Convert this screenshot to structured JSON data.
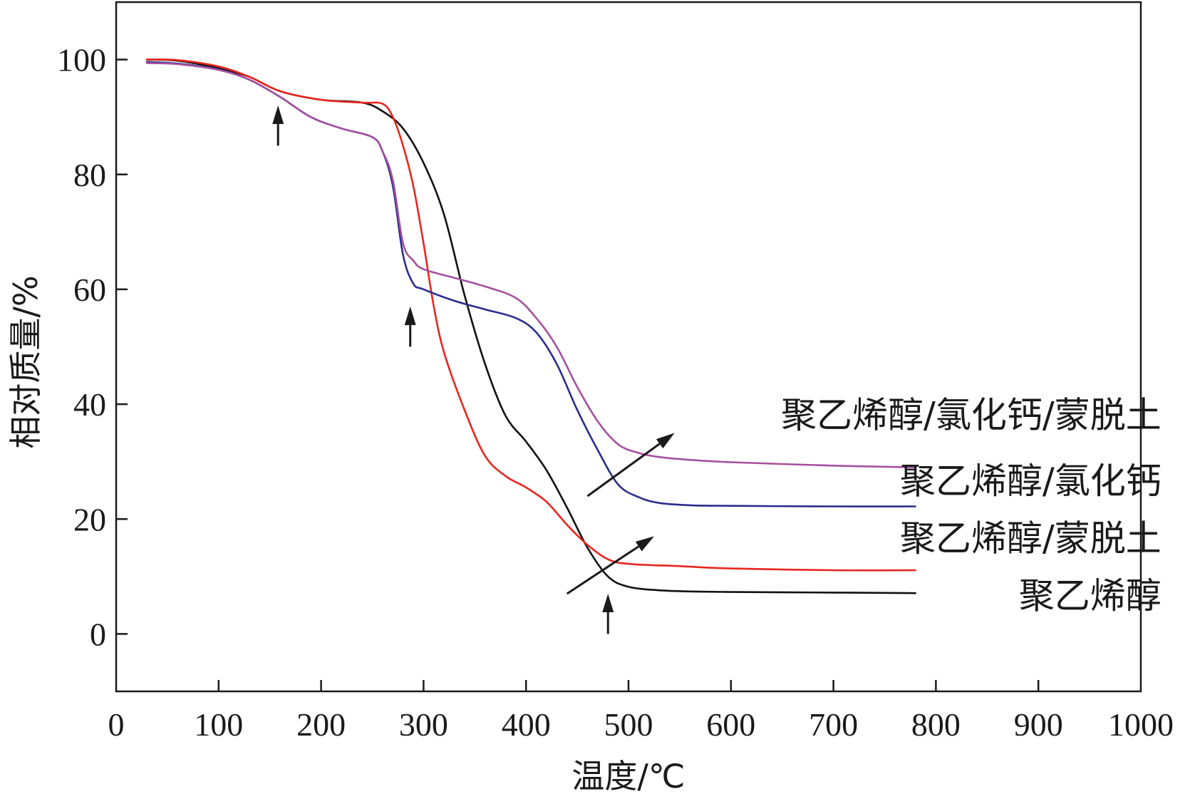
{
  "chart_data": {
    "type": "line",
    "title": "",
    "xlabel": "温度/℃",
    "ylabel": "相对质量/%",
    "xlim": [
      0,
      1000
    ],
    "ylim": [
      -10,
      110
    ],
    "xticks": [
      0,
      100,
      200,
      300,
      400,
      500,
      600,
      700,
      800,
      900,
      1000
    ],
    "yticks": [
      0,
      20,
      40,
      60,
      80,
      100
    ],
    "grid": false,
    "series": [
      {
        "name": "聚乙烯醇",
        "color": "#111111",
        "x": [
          30,
          60,
          100,
          130,
          160,
          200,
          240,
          260,
          280,
          300,
          320,
          340,
          360,
          380,
          400,
          420,
          440,
          460,
          480,
          500,
          530,
          560,
          600,
          700,
          780
        ],
        "y": [
          100,
          99.8,
          98.5,
          97,
          94.5,
          93,
          92.5,
          91,
          88,
          82,
          73,
          59,
          47,
          38,
          33.5,
          28.5,
          22,
          15,
          10,
          8.2,
          7.6,
          7.4,
          7.3,
          7.2,
          7.1
        ]
      },
      {
        "name": "聚乙烯醇/蒙脱土",
        "color": "#e8261e",
        "x": [
          30,
          60,
          100,
          130,
          160,
          200,
          240,
          260,
          270,
          280,
          290,
          300,
          310,
          320,
          340,
          360,
          380,
          400,
          420,
          440,
          460,
          480,
          500,
          550,
          600,
          700,
          780
        ],
        "y": [
          100,
          99.9,
          98.8,
          97,
          94.5,
          93,
          92.5,
          92.3,
          90,
          85,
          78,
          68,
          57,
          49,
          39,
          31,
          27.5,
          25.5,
          23,
          19,
          15.5,
          13,
          12.2,
          11.8,
          11.4,
          11.1,
          11.1
        ]
      },
      {
        "name": "聚乙烯醇/氯化钙",
        "color": "#2b2c8c",
        "x": [
          30,
          60,
          100,
          130,
          160,
          190,
          220,
          250,
          260,
          270,
          280,
          290,
          300,
          330,
          360,
          390,
          410,
          430,
          450,
          470,
          490,
          510,
          530,
          560,
          600,
          700,
          780
        ],
        "y": [
          99.6,
          99.3,
          98.3,
          96.5,
          93.5,
          90,
          88,
          86.5,
          84,
          78,
          66,
          61,
          60,
          58,
          56.5,
          55,
          52.5,
          47,
          39,
          32,
          26,
          23.8,
          22.8,
          22.4,
          22.3,
          22.2,
          22.2
        ]
      },
      {
        "name": "聚乙烯醇/氯化钙/蒙脱土",
        "color": "#a4509e",
        "x": [
          30,
          60,
          100,
          130,
          160,
          190,
          220,
          250,
          260,
          270,
          280,
          290,
          300,
          330,
          360,
          390,
          410,
          430,
          450,
          470,
          490,
          510,
          530,
          560,
          600,
          700,
          780
        ],
        "y": [
          99.4,
          99.2,
          98.2,
          96.5,
          93.5,
          90,
          88,
          86.5,
          84,
          79,
          68,
          65,
          63.5,
          62,
          60.5,
          58.5,
          55,
          50,
          43,
          37,
          33,
          31.5,
          30.8,
          30.3,
          29.9,
          29.3,
          29
        ]
      }
    ],
    "annotations": [
      {
        "type": "arrow",
        "name": "peak-arrow-1",
        "from": [
          158,
          85
        ],
        "to": [
          158,
          92
        ]
      },
      {
        "type": "arrow",
        "name": "peak-arrow-2",
        "from": [
          287,
          50
        ],
        "to": [
          287,
          57
        ]
      },
      {
        "type": "arrow",
        "name": "peak-arrow-3",
        "from": [
          480,
          0
        ],
        "to": [
          480,
          7
        ]
      },
      {
        "type": "arrow",
        "name": "label-arrow-pva-mmt",
        "from": [
          440,
          7
        ],
        "to": [
          525,
          17
        ]
      },
      {
        "type": "arrow",
        "name": "label-arrow-pva-cacl2-mmt",
        "from": [
          460,
          24
        ],
        "to": [
          545,
          35
        ]
      }
    ],
    "series_labels": [
      {
        "text": "聚乙烯醇/氯化钙/蒙脱土",
        "x": 1020,
        "y": 36
      },
      {
        "text": "聚乙烯醇/氯化钙",
        "x": 1020,
        "y": 24.5
      },
      {
        "text": "聚乙烯醇/蒙脱土",
        "x": 1020,
        "y": 14.5
      },
      {
        "text": "聚乙烯醇",
        "x": 1020,
        "y": 4.5
      }
    ]
  }
}
